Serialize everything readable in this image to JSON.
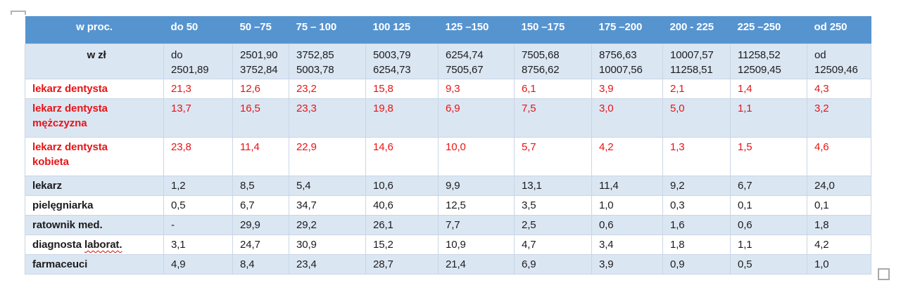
{
  "table": {
    "corner_label": "w proc.",
    "unit_row_label": "w zł",
    "col_headers": [
      "do 50",
      "50 –75",
      "75 – 100",
      "100 125",
      "125 –150",
      "150 –175",
      "175 –200",
      "200 - 225",
      "225 –250",
      "od 250"
    ],
    "unit_row_values": [
      "do\n2501,89",
      "2501,90\n3752,84",
      "3752,85\n5003,78",
      "5003,79\n6254,73",
      "6254,74\n7505,67",
      "7505,68\n8756,62",
      "8756,63\n10007,56",
      "10007,57\n11258,51",
      "11258,52\n12509,45",
      "od 12509,46"
    ],
    "rows": [
      {
        "label": "lekarz dentysta",
        "highlight": true,
        "values": [
          "21,3",
          "12,6",
          "23,2",
          "15,8",
          "9,3",
          "6,1",
          "3,9",
          "2,1",
          "1,4",
          "4,3"
        ]
      },
      {
        "label": "lekarz dentysta\nmężczyzna",
        "highlight": true,
        "values": [
          "13,7",
          "16,5",
          "23,3",
          "19,8",
          "6,9",
          "7,5",
          "3,0",
          "5,0",
          "1,1",
          "3,2"
        ]
      },
      {
        "label": "lekarz dentysta\nkobieta",
        "highlight": true,
        "values": [
          "23,8",
          "11,4",
          "22,9",
          "14,6",
          "10,0",
          "5,7",
          "4,2",
          "1,3",
          "1,5",
          "4,6"
        ]
      },
      {
        "label": "lekarz",
        "values": [
          "1,2",
          "8,5",
          "5,4",
          "10,6",
          "9,9",
          "13,1",
          "11,4",
          "9,2",
          "6,7",
          "24,0"
        ]
      },
      {
        "label": "pielęgniarka",
        "values": [
          "0,5",
          "6,7",
          "34,7",
          "40,6",
          "12,5",
          "3,5",
          "1,0",
          "0,3",
          "0,1",
          "0,1"
        ]
      },
      {
        "label": "ratownik med.",
        "values": [
          "-",
          "29,9",
          "29,2",
          "26,1",
          "7,7",
          "2,5",
          "0,6",
          "1,6",
          "0,6",
          "1,8"
        ]
      },
      {
        "label_prefix": "diagnosta ",
        "label_misspelled": "laborat.",
        "values": [
          "3,1",
          "24,7",
          "30,9",
          "15,2",
          "10,9",
          "4,7",
          "3,4",
          "1,8",
          "1,1",
          "4,2"
        ]
      },
      {
        "label": "farmaceuci",
        "values": [
          "4,9",
          "8,4",
          "23,4",
          "28,7",
          "21,4",
          "6,9",
          "3,9",
          "0,9",
          "0,5",
          "1,0"
        ]
      }
    ],
    "colors": {
      "header_bg": "#5694d0",
      "header_text": "#ffffff",
      "band_bg": "#dbe6f3",
      "highlight_text": "#e81416",
      "text": "#1c1c1c",
      "border": "#c9d6e5",
      "handle_gray": "#a8a8a8"
    }
  }
}
